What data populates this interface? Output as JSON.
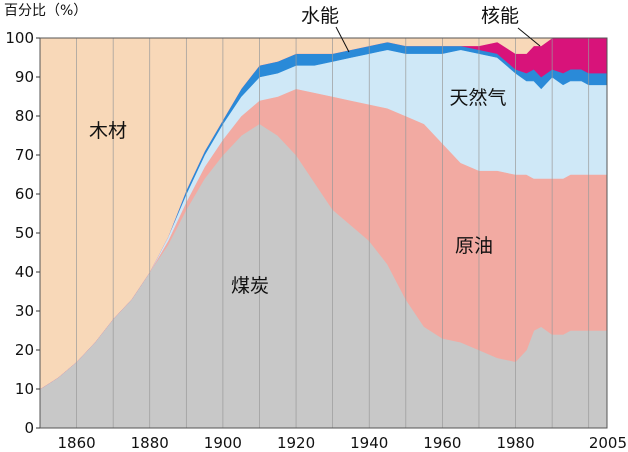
{
  "chart_data": {
    "type": "area",
    "stacked": true,
    "ylabel": "百分比（%）",
    "xlim": [
      1850,
      2005
    ],
    "ylim": [
      0,
      100
    ],
    "x_ticks": [
      1860,
      1880,
      1900,
      1920,
      1940,
      1960,
      1980,
      2005
    ],
    "y_ticks": [
      0,
      10,
      20,
      30,
      40,
      50,
      60,
      70,
      80,
      90,
      100
    ],
    "grid": true,
    "x": [
      1850,
      1855,
      1860,
      1865,
      1870,
      1875,
      1880,
      1885,
      1890,
      1895,
      1900,
      1905,
      1910,
      1915,
      1920,
      1925,
      1930,
      1935,
      1940,
      1945,
      1950,
      1955,
      1960,
      1965,
      1970,
      1975,
      1980,
      1983,
      1985,
      1987,
      1990,
      1993,
      1995,
      1998,
      2000,
      2005
    ],
    "series": [
      {
        "name": "煤炭",
        "color": "#c8c8c8",
        "values": [
          10,
          13,
          17,
          22,
          28,
          33,
          40,
          47,
          56,
          64,
          70,
          75,
          78,
          75,
          70,
          63,
          56,
          52,
          48,
          42,
          33,
          26,
          23,
          22,
          20,
          18,
          17,
          20,
          25,
          26,
          24,
          24,
          25,
          25,
          25,
          25
        ]
      },
      {
        "name": "原油",
        "color": "#f2aaa2",
        "values": [
          0,
          0,
          0,
          0,
          0,
          0,
          0,
          1,
          2,
          3,
          4,
          5,
          6,
          10,
          17,
          23,
          29,
          32,
          35,
          40,
          47,
          52,
          50,
          46,
          46,
          48,
          48,
          45,
          39,
          38,
          40,
          40,
          40,
          40,
          40,
          40
        ]
      },
      {
        "name": "天然气",
        "color": "#cfe8f7",
        "values": [
          0,
          0,
          0,
          0,
          0,
          0,
          0,
          1,
          2,
          3,
          4,
          5,
          6,
          6,
          6,
          7,
          9,
          11,
          13,
          15,
          16,
          18,
          23,
          29,
          30,
          29,
          26,
          24,
          25,
          23,
          26,
          24,
          24,
          24,
          23,
          23
        ]
      },
      {
        "name": "水能",
        "color": "#2a8ad8",
        "values": [
          0,
          0,
          0,
          0,
          0,
          0,
          0,
          0,
          1,
          1,
          1,
          2,
          3,
          3,
          3,
          3,
          2,
          2,
          2,
          2,
          2,
          2,
          2,
          1,
          1,
          1,
          1,
          2,
          3,
          3,
          2,
          3,
          3,
          3,
          3,
          3
        ]
      },
      {
        "name": "核能",
        "color": "#d8137a",
        "values": [
          0,
          0,
          0,
          0,
          0,
          0,
          0,
          0,
          0,
          0,
          0,
          0,
          0,
          0,
          0,
          0,
          0,
          0,
          0,
          0,
          0,
          0,
          0,
          0,
          1,
          3,
          4,
          5,
          6,
          8,
          8,
          9,
          8,
          8,
          9,
          9
        ]
      },
      {
        "name": "木材",
        "color": "#f8d8b8",
        "values": [
          90,
          87,
          83,
          78,
          72,
          67,
          60,
          51,
          39,
          29,
          21,
          13,
          7,
          6,
          4,
          4,
          4,
          3,
          2,
          1,
          2,
          2,
          2,
          2,
          2,
          1,
          4,
          4,
          2,
          2,
          0,
          0,
          0,
          0,
          0,
          0
        ]
      }
    ]
  }
}
